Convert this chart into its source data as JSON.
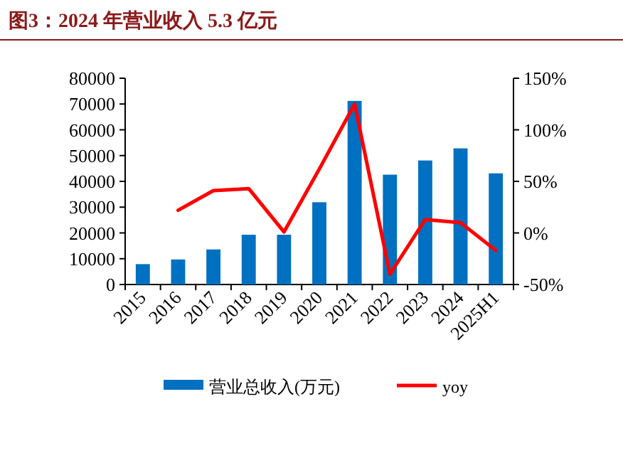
{
  "chart_data": {
    "type": "bar",
    "title": "图3：2024 年营业收入 5.3 亿元",
    "categories": [
      "2015",
      "2016",
      "2017",
      "2018",
      "2019",
      "2020",
      "2021",
      "2022",
      "2023",
      "2024",
      "2025H1"
    ],
    "series": [
      {
        "name": "营业总收入(万元)",
        "color": "#0070c0",
        "values": [
          7900,
          9700,
          13600,
          19300,
          19300,
          31900,
          71200,
          42600,
          48100,
          52800,
          43100
        ]
      },
      {
        "name": "yoy",
        "type": "line",
        "axis": "y2",
        "color": "#ff0000",
        "values": [
          null,
          22,
          41,
          43,
          1,
          62,
          125,
          -40,
          13,
          10,
          -17
        ]
      }
    ],
    "ylim": [
      0,
      80000
    ],
    "yticks": [
      0,
      10000,
      20000,
      30000,
      40000,
      50000,
      60000,
      70000,
      80000
    ],
    "y2lim": [
      -50,
      150
    ],
    "y2ticks": [
      {
        "value": -50,
        "label": "-50%"
      },
      {
        "value": 0,
        "label": "0%"
      },
      {
        "value": 50,
        "label": "50%"
      },
      {
        "value": 100,
        "label": "100%"
      },
      {
        "value": 150,
        "label": "150%"
      }
    ],
    "legend": "bottom"
  }
}
